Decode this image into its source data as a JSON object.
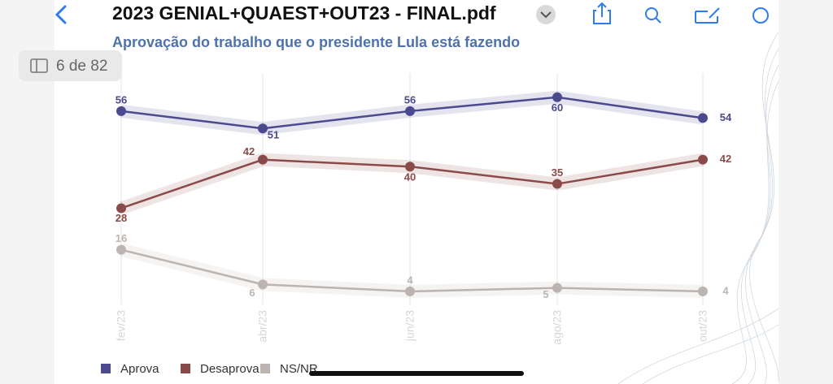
{
  "viewer": {
    "file_title": "2023 GENIAL+QUAEST+OUT23 - FINAL.pdf",
    "page_indicator": "6 de 82"
  },
  "chart_data": {
    "type": "line",
    "title": "Aprovação do trabalho que o presidente Lula está fazendo",
    "categories": [
      "fev/23",
      "abr/23",
      "jun/23",
      "ago/23",
      "out/23"
    ],
    "series": [
      {
        "name": "Aprova",
        "color": "#4b4a8f",
        "values": [
          56,
          51,
          56,
          60,
          54
        ]
      },
      {
        "name": "Desaprova",
        "color": "#8b4a4a",
        "values": [
          28,
          42,
          40,
          35,
          42
        ]
      },
      {
        "name": "NS/NR",
        "color": "#bcb4b0",
        "values": [
          16,
          6,
          4,
          5,
          4
        ]
      }
    ]
  }
}
